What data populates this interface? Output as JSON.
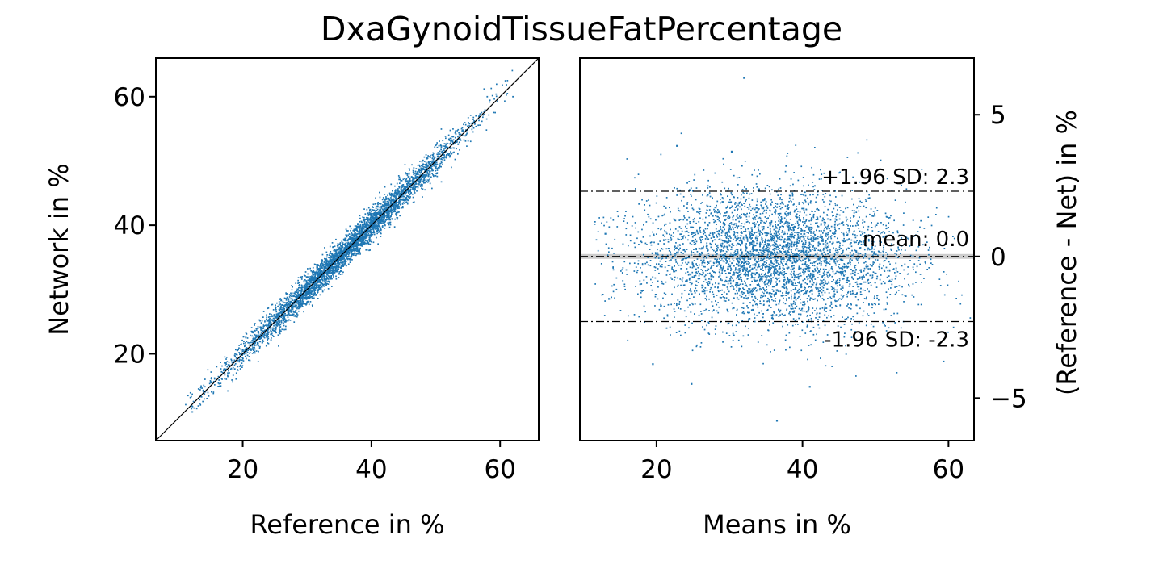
{
  "title": "DxaGynoidTissueFatPercentage",
  "colors": {
    "points": "#1f77b4",
    "identity_line": "#000000",
    "mean_band": "#cccccc",
    "ref_lines": "#000000"
  },
  "chart_data": [
    {
      "type": "scatter",
      "xlabel": "Reference in %",
      "ylabel": "Network in %",
      "xlim": [
        6.5,
        66
      ],
      "ylim": [
        6.5,
        66
      ],
      "xticks": [
        20,
        40,
        60
      ],
      "yticks": [
        20,
        40,
        60
      ],
      "identity_line": true,
      "cloud": {
        "n_points": 4200,
        "x_range": [
          11,
          62
        ],
        "x_center": 36,
        "slope": 1.0,
        "sd_diff": 1.2
      },
      "extreme_points": [
        [
          11.5,
          13.5
        ],
        [
          12.2,
          11.8
        ],
        [
          58,
          60
        ],
        [
          62,
          60
        ]
      ]
    },
    {
      "type": "scatter",
      "subtype": "bland-altman",
      "xlabel": "Means in %",
      "ylabel": "(Reference - Net) in %",
      "xlim": [
        9.5,
        63.5
      ],
      "ylim": [
        -6.5,
        7.0
      ],
      "xticks": [
        20,
        40,
        60
      ],
      "yticks": [
        -5,
        0,
        5
      ],
      "ytick_labels": [
        "−5",
        "0",
        "5"
      ],
      "yaxis_side": "right",
      "mean_diff": 0.0,
      "upper_loa": 2.3,
      "lower_loa": -2.3,
      "annotations": {
        "upper": "+1.96 SD: 2.3",
        "mean": "mean: 0.0",
        "lower": "-1.96 SD: -2.3"
      },
      "cloud": {
        "n_points": 4200,
        "x_range": [
          11,
          62
        ],
        "x_center": 36,
        "sd_diff": 1.2
      },
      "extreme_points": [
        [
          32,
          6.3
        ],
        [
          36.5,
          -5.8
        ],
        [
          22.8,
          3.9
        ],
        [
          30.3,
          3.7
        ],
        [
          24.8,
          -4.5
        ],
        [
          41,
          -4.6
        ],
        [
          19.5,
          -3.8
        ],
        [
          13,
          0.8
        ],
        [
          13.5,
          -1.5
        ]
      ]
    }
  ]
}
